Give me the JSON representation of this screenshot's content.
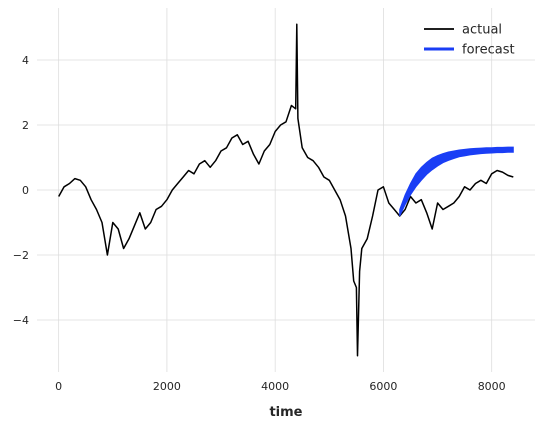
{
  "chart_data": {
    "type": "line",
    "xlabel": "time",
    "ylabel": "",
    "xlim": [
      -400,
      8800
    ],
    "ylim": [
      -5.6,
      5.6
    ],
    "xticks": [
      0,
      2000,
      4000,
      6000,
      8000
    ],
    "yticks": [
      -4,
      -2,
      0,
      2,
      4
    ],
    "grid": true,
    "legend_position": "upper right",
    "series": [
      {
        "name": "actual",
        "color": "#000000",
        "x": [
          0,
          100,
          200,
          300,
          400,
          500,
          600,
          700,
          800,
          900,
          1000,
          1100,
          1200,
          1300,
          1400,
          1500,
          1600,
          1700,
          1800,
          1900,
          2000,
          2100,
          2200,
          2300,
          2400,
          2500,
          2600,
          2700,
          2800,
          2900,
          3000,
          3100,
          3200,
          3300,
          3400,
          3500,
          3600,
          3700,
          3800,
          3900,
          4000,
          4100,
          4200,
          4300,
          4380,
          4400,
          4420,
          4500,
          4600,
          4700,
          4800,
          4900,
          5000,
          5100,
          5200,
          5300,
          5400,
          5450,
          5500,
          5520,
          5560,
          5600,
          5700,
          5800,
          5900,
          6000,
          6100,
          6200,
          6300,
          6400,
          6500,
          6600,
          6700,
          6800,
          6900,
          7000,
          7100,
          7200,
          7300,
          7400,
          7500,
          7600,
          7700,
          7800,
          7900,
          8000,
          8100,
          8200,
          8300,
          8400
        ],
        "y": [
          -0.2,
          0.1,
          0.2,
          0.35,
          0.3,
          0.1,
          -0.3,
          -0.6,
          -1.0,
          -2.0,
          -1.0,
          -1.2,
          -1.8,
          -1.5,
          -1.1,
          -0.7,
          -1.2,
          -1.0,
          -0.6,
          -0.5,
          -0.3,
          0.0,
          0.2,
          0.4,
          0.6,
          0.5,
          0.8,
          0.9,
          0.7,
          0.9,
          1.2,
          1.3,
          1.6,
          1.7,
          1.4,
          1.5,
          1.1,
          0.8,
          1.2,
          1.4,
          1.8,
          2.0,
          2.1,
          2.6,
          2.5,
          5.1,
          2.2,
          1.3,
          1.0,
          0.9,
          0.7,
          0.4,
          0.3,
          0.0,
          -0.3,
          -0.8,
          -1.8,
          -2.8,
          -3.0,
          -5.1,
          -2.5,
          -1.8,
          -1.5,
          -0.8,
          0.0,
          0.1,
          -0.4,
          -0.6,
          -0.8,
          -0.6,
          -0.2,
          -0.4,
          -0.3,
          -0.7,
          -1.2,
          -0.4,
          -0.6,
          -0.5,
          -0.4,
          -0.2,
          0.1,
          0.0,
          0.2,
          0.3,
          0.2,
          0.5,
          0.6,
          0.55,
          0.45,
          0.4
        ]
      },
      {
        "name": "forecast",
        "color": "#1a3ef5",
        "x": [
          6300,
          6400,
          6500,
          6600,
          6700,
          6800,
          6900,
          7000,
          7100,
          7200,
          7300,
          7400,
          7500,
          7600,
          7700,
          7800,
          7900,
          8000,
          8100,
          8200,
          8300,
          8400
        ],
        "y_upper": [
          -0.6,
          -0.15,
          0.2,
          0.5,
          0.7,
          0.85,
          0.98,
          1.06,
          1.12,
          1.17,
          1.2,
          1.23,
          1.25,
          1.27,
          1.28,
          1.29,
          1.3,
          1.3,
          1.31,
          1.31,
          1.32,
          1.32
        ],
        "y_lower": [
          -0.8,
          -0.45,
          -0.15,
          0.1,
          0.3,
          0.48,
          0.62,
          0.74,
          0.84,
          0.91,
          0.97,
          1.02,
          1.05,
          1.08,
          1.1,
          1.12,
          1.13,
          1.14,
          1.15,
          1.15,
          1.16,
          1.16
        ]
      }
    ]
  }
}
